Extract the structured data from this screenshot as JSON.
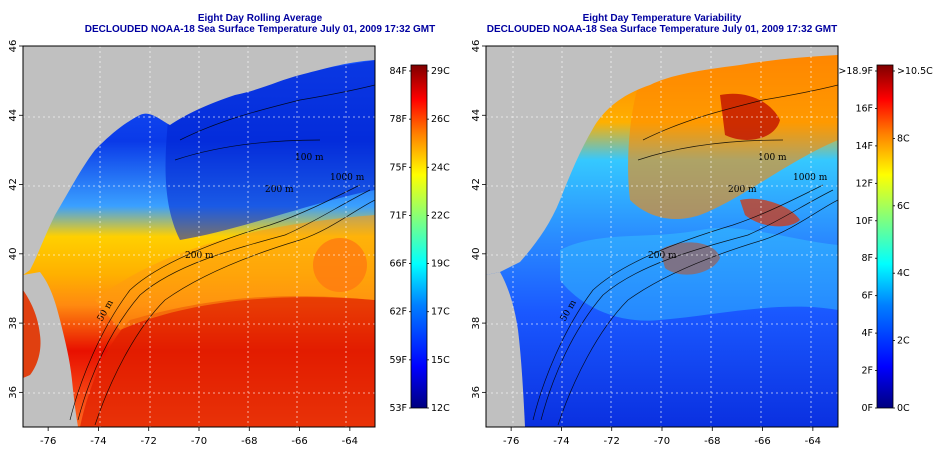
{
  "panels": [
    {
      "id": "rolling-average",
      "title": "Eight Day Rolling Average",
      "subtitle": "DECLOUDED NOAA-18 Sea Surface Temperature July 01, 2009 17:32 GMT",
      "colorbar_left": [
        "84F",
        "78F",
        "75F",
        "71F",
        "66F",
        "62F",
        "59F",
        "53F"
      ],
      "colorbar_right": [
        "29C",
        "26C",
        "24C",
        "22C",
        "19C",
        "17C",
        "15C",
        "12C"
      ],
      "contour_labels": [
        "100 m",
        "200 m",
        "1000 m",
        "200 m",
        "50 m"
      ]
    },
    {
      "id": "temperature-variability",
      "title": "Eight Day Temperature Variability",
      "subtitle": "DECLOUDED NOAA-18 Sea Surface Temperature July 01, 2009 17:32 GMT",
      "colorbar_left": [
        ">18.9F",
        "16F",
        "14F",
        "12F",
        "10F",
        "8F",
        "6F",
        "4F",
        "2F",
        "0F"
      ],
      "colorbar_right": [
        ">10.5C",
        "8C",
        "6C",
        "4C",
        "2C",
        "0C"
      ],
      "contour_labels": [
        "100 m",
        "200 m",
        "1000 m",
        "200 m",
        "50 m"
      ]
    }
  ],
  "lon_ticks": [
    "-76",
    "-74",
    "-72",
    "-70",
    "-68",
    "-66",
    "-64"
  ],
  "lat_ticks": [
    "36",
    "38",
    "40",
    "42",
    "44",
    "46"
  ],
  "colors": {
    "land": "#c0c0c0",
    "title": "#0000a0",
    "sst_scale": [
      "#00007f",
      "#0000ff",
      "#007fff",
      "#00ffff",
      "#7fff7f",
      "#ffff00",
      "#ff7f00",
      "#ff0000",
      "#7f0000"
    ]
  }
}
